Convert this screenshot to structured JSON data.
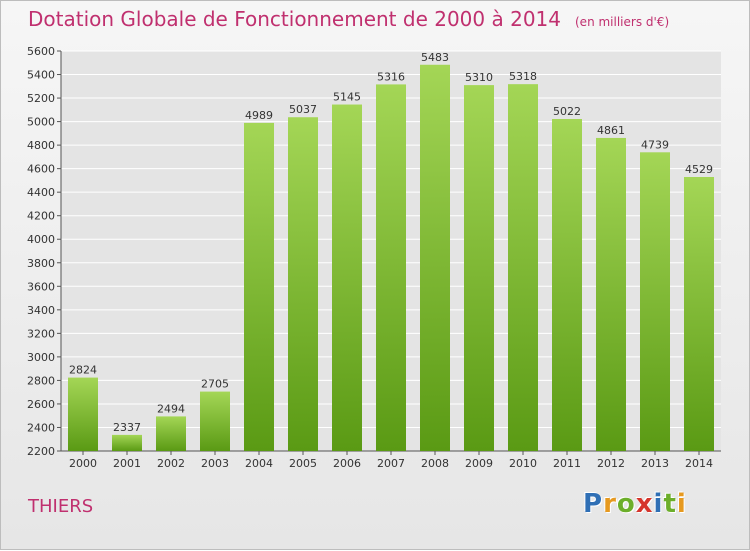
{
  "title": "Dotation Globale de Fonctionnement de 2000 à 2014",
  "unit": "(en milliers d'€)",
  "commune": "THIERS",
  "logo": {
    "letters": [
      "P",
      "r",
      "o",
      "x",
      "i",
      "t",
      "i"
    ],
    "colors": [
      "#2f6fb5",
      "#e6991f",
      "#6cae2a",
      "#d6352c",
      "#2f6fb5",
      "#6cae2a",
      "#e6991f"
    ]
  },
  "colors": {
    "title": "#c0306f",
    "bar_top": "#a4d656",
    "bar_bottom": "#5a9a14",
    "grid": "#ffffff",
    "text": "#333333"
  },
  "chart_data": {
    "type": "bar",
    "title": "Dotation Globale de Fonctionnement de 2000 à 2014",
    "subtitle": "(en milliers d'€)",
    "categories": [
      "2000",
      "2001",
      "2002",
      "2003",
      "2004",
      "2005",
      "2006",
      "2007",
      "2008",
      "2009",
      "2010",
      "2011",
      "2012",
      "2013",
      "2014"
    ],
    "values": [
      2824,
      2337,
      2494,
      2705,
      4989,
      5037,
      5145,
      5316,
      5483,
      5310,
      5318,
      5022,
      4861,
      4739,
      4529
    ],
    "ylim": [
      2200,
      5600
    ],
    "yticks": [
      2200,
      2400,
      2600,
      2800,
      3000,
      3200,
      3400,
      3600,
      3800,
      4000,
      4200,
      4400,
      4600,
      4800,
      5000,
      5200,
      5400,
      5600
    ],
    "grid": true,
    "legend": "none"
  }
}
